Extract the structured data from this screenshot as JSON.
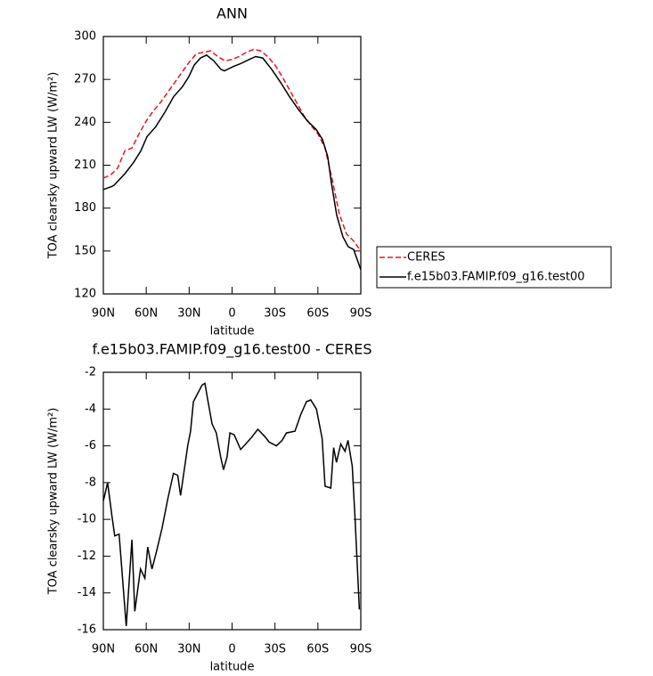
{
  "chart_data": [
    {
      "type": "line",
      "title": "ANN",
      "xlabel": "latitude",
      "ylabel": "TOA clearsky upward LW (W/m²)",
      "xlim": [
        90,
        -90
      ],
      "xticks": [
        {
          "value": 90,
          "label": "90N"
        },
        {
          "value": 60,
          "label": "60N"
        },
        {
          "value": 30,
          "label": "30N"
        },
        0,
        {
          "value": -30,
          "label": "30S"
        },
        {
          "value": -60,
          "label": "60S"
        },
        {
          "value": -90,
          "label": "90S"
        }
      ],
      "ylim": [
        120,
        300
      ],
      "yticks": [
        120,
        150,
        180,
        210,
        240,
        270,
        300
      ],
      "series": [
        {
          "name": "CERES",
          "color": "#e8141c",
          "dash": true,
          "x": [
            90,
            85,
            80,
            75,
            70,
            65,
            60,
            55,
            50,
            45,
            40,
            35,
            30,
            25,
            20,
            15,
            10,
            5,
            0,
            -5,
            -10,
            -15,
            -20,
            -25,
            -30,
            -35,
            -40,
            -45,
            -50,
            -55,
            -60,
            -65,
            -70,
            -75,
            -80,
            -85,
            -90
          ],
          "values": [
            201,
            203,
            208,
            220,
            222,
            232,
            241,
            248,
            254,
            261,
            268,
            275,
            282,
            288,
            289,
            290,
            286,
            283,
            284,
            286,
            289,
            291,
            290,
            286,
            280,
            272,
            263,
            254,
            245,
            238,
            232,
            222,
            200,
            176,
            162,
            157,
            150
          ]
        },
        {
          "name": "f.e15b03.FAMIP.f09_g16.test00",
          "color": "#000000",
          "dash": false,
          "x": [
            90,
            84.4,
            82.5,
            75,
            68.8,
            63.8,
            59.5,
            53.3,
            47,
            40.8,
            34.6,
            30.2,
            26.5,
            22.1,
            17.8,
            12.8,
            7.8,
            5.3,
            -0.9,
            -5.9,
            -12.1,
            -16.5,
            -21.4,
            -27.7,
            -33.9,
            -40.1,
            -46.4,
            -52.6,
            -58.8,
            -63.2,
            -66.9,
            -69.4,
            -73.2,
            -77.5,
            -81.2,
            -85,
            -90
          ],
          "values": [
            193,
            195,
            196,
            204,
            212,
            220,
            230,
            237,
            247,
            258,
            265,
            272,
            280,
            285,
            287,
            283,
            277,
            276,
            279,
            281,
            284,
            286,
            285,
            277,
            268,
            258,
            249,
            241,
            235,
            228,
            216,
            198,
            175,
            160,
            153,
            151,
            137
          ]
        }
      ]
    },
    {
      "type": "line",
      "title": "f.e15b03.FAMIP.f09_g16.test00 - CERES",
      "xlabel": "latitude",
      "ylabel": "TOA clearsky upward LW (W/m²)",
      "xlim": [
        90,
        -90
      ],
      "xticks": [
        {
          "value": 90,
          "label": "90N"
        },
        {
          "value": 60,
          "label": "60N"
        },
        {
          "value": 30,
          "label": "30N"
        },
        0,
        {
          "value": -30,
          "label": "30S"
        },
        {
          "value": -60,
          "label": "60S"
        },
        {
          "value": -90,
          "label": "90S"
        }
      ],
      "ylim": [
        -16,
        -2
      ],
      "yticks": [
        -16,
        -14,
        -12,
        -10,
        -8,
        -6,
        -4,
        -2
      ],
      "series": [
        {
          "color": "#000000",
          "x": [
            90,
            87,
            84,
            82,
            79,
            74,
            70,
            68,
            64,
            61,
            59,
            56,
            53,
            49,
            45,
            41,
            38,
            36,
            31,
            29,
            27,
            21,
            19,
            17,
            14,
            11,
            8,
            6,
            3.5,
            1.5,
            -1.5,
            -6,
            -13,
            -18,
            -23,
            -26,
            -31,
            -35,
            -38,
            -44,
            -48,
            -52,
            -55,
            -59,
            -63,
            -65,
            -69,
            -71,
            -73,
            -76,
            -79,
            -81,
            -84,
            -86,
            -89
          ],
          "values": [
            -9,
            -8,
            -9.8,
            -10.9,
            -10.8,
            -15.8,
            -11.1,
            -15,
            -12.7,
            -13.2,
            -11.5,
            -12.7,
            -11.8,
            -10.5,
            -8.9,
            -7.5,
            -7.6,
            -8.7,
            -6,
            -5.2,
            -3.6,
            -2.7,
            -2.6,
            -3.5,
            -4.8,
            -5.3,
            -6.6,
            -7.3,
            -6.6,
            -5.3,
            -5.4,
            -6.2,
            -5.6,
            -5.1,
            -5.5,
            -5.8,
            -6,
            -5.7,
            -5.3,
            -5.2,
            -4.3,
            -3.6,
            -3.5,
            -4,
            -5.6,
            -8.2,
            -8.3,
            -6.1,
            -6.9,
            -5.9,
            -6.3,
            -5.7,
            -7.1,
            -10,
            -14.9
          ]
        }
      ]
    }
  ]
}
